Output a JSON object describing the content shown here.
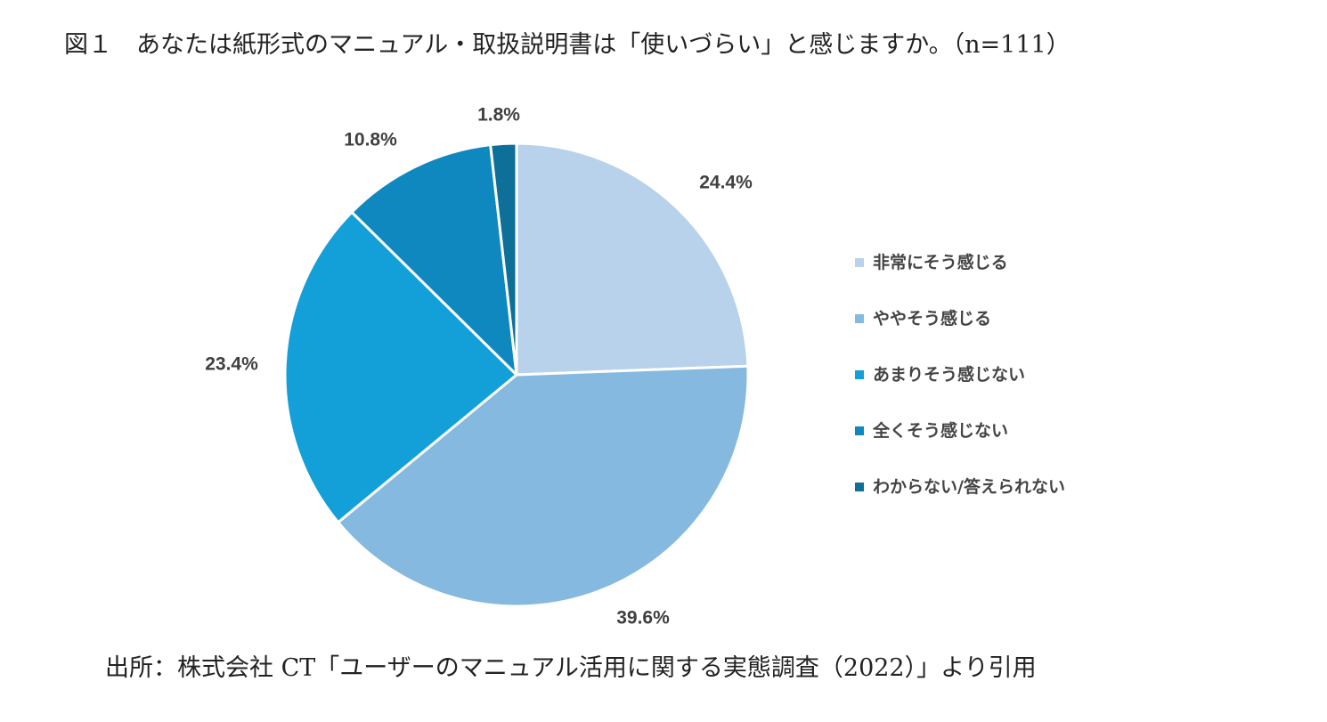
{
  "title": "図１　あなたは紙形式のマニュアル・取扱説明書は「使いづらい」と感じますか。（n=111）",
  "source": "出所：株式会社 CT「ユーザーのマニュアル活用に関する実態調査（2022）」より引用",
  "chart_data": {
    "type": "pie",
    "categories": [
      "非常にそう感じる",
      "ややそう感じる",
      "あまりそう感じない",
      "全くそう感じない",
      "わからない/答えられない"
    ],
    "values": [
      24.4,
      39.6,
      23.4,
      10.8,
      1.8
    ],
    "labels": [
      "24.4%",
      "39.6%",
      "23.4%",
      "10.8%",
      "1.8%"
    ],
    "colors": [
      "#b7d2ea",
      "#86b9e0",
      "#139fd8",
      "#0f88bf",
      "#0e6f98"
    ],
    "start": "12 o'clock",
    "direction": "clockwise",
    "legend_position": "right"
  }
}
